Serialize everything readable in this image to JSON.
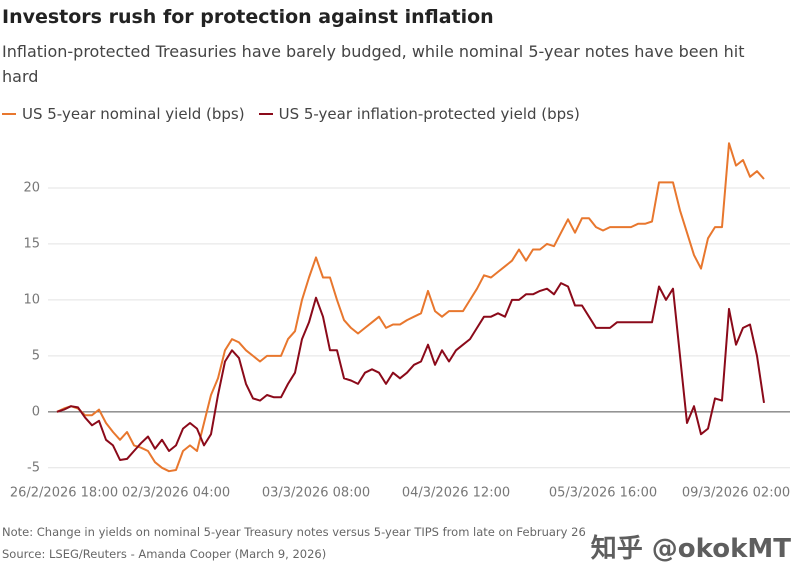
{
  "chart_data": {
    "type": "line",
    "title": "Investors rush for protection against inflation",
    "subtitle": "Inflation-protected Treasuries have barely budged, while nominal 5-year notes have been hit hard",
    "note": "Note: Change in yields on nominal 5-year Treasury notes versus 5-year TIPS from late on February 26",
    "source": "Source: LSEG/Reuters - Amanda Cooper (March 9, 2026)",
    "watermark": "知乎 @okokMT",
    "categories": [
      null,
      "26/2/2026 18:00",
      null,
      null,
      null,
      null,
      null,
      null,
      null,
      null,
      null,
      null,
      null,
      null,
      null,
      null,
      null,
      "02/3/2026 04:00",
      null,
      null,
      null,
      null,
      null,
      null,
      null,
      null,
      null,
      null,
      null,
      null,
      null,
      null,
      null,
      null,
      null,
      null,
      null,
      "03/3/2026 08:00",
      null,
      null,
      null,
      null,
      null,
      null,
      null,
      null,
      null,
      null,
      null,
      null,
      null,
      null,
      null,
      null,
      null,
      null,
      null,
      "04/3/2026 12:00",
      null,
      null,
      null,
      null,
      null,
      null,
      null,
      null,
      null,
      null,
      null,
      null,
      null,
      null,
      null,
      null,
      null,
      null,
      null,
      null,
      "05/3/2026 16:00",
      null,
      null,
      null,
      null,
      null,
      null,
      null,
      null,
      null,
      null,
      null,
      null,
      null,
      null,
      null,
      null,
      null,
      null,
      "09/3/2026 02:00",
      null,
      null,
      null,
      null
    ],
    "series": [
      {
        "name": "US 5-year nominal yield (bps)",
        "color": "#e8772e",
        "values": [
          0,
          0.3,
          0.5,
          0.3,
          -0.3,
          -0.3,
          0.2,
          -1,
          -1.8,
          -2.5,
          -1.8,
          -3,
          -3.2,
          -3.5,
          -4.5,
          -5,
          -5.3,
          -5.2,
          -3.5,
          -3,
          -3.5,
          -1,
          1.5,
          3,
          5.5,
          6.5,
          6.2,
          5.5,
          5,
          4.5,
          5,
          5,
          5,
          6.5,
          7.2,
          10,
          12,
          13.8,
          12,
          12,
          10,
          8.2,
          7.5,
          7,
          7.5,
          8,
          8.5,
          7.5,
          7.8,
          7.8,
          8.2,
          8.5,
          8.8,
          10.8,
          9,
          8.5,
          9,
          9,
          9,
          10,
          11,
          12.2,
          12,
          12.5,
          13,
          13.5,
          14.5,
          13.5,
          14.5,
          14.5,
          15,
          14.8,
          16,
          17.2,
          16,
          17.3,
          17.3,
          16.5,
          16.2,
          16.5,
          16.5,
          16.5,
          16.5,
          16.8,
          16.8,
          17,
          20.5,
          20.5,
          20.5,
          18,
          16,
          14,
          12.8,
          15.5,
          16.5,
          16.5,
          24,
          22,
          22.5,
          21,
          21.5,
          20.8
        ]
      },
      {
        "name": "US 5-year inflation-protected yield (bps)",
        "color": "#8b0a1a",
        "values": [
          0,
          0.2,
          0.5,
          0.4,
          -0.5,
          -1.2,
          -0.8,
          -2.5,
          -3,
          -4.3,
          -4.2,
          -3.5,
          -2.8,
          -2.2,
          -3.3,
          -2.5,
          -3.5,
          -3,
          -1.5,
          -1,
          -1.5,
          -3,
          -2,
          1.5,
          4.5,
          5.5,
          4.8,
          2.5,
          1.2,
          1,
          1.5,
          1.3,
          1.3,
          2.5,
          3.5,
          6.5,
          8,
          10.2,
          8.5,
          5.5,
          5.5,
          3,
          2.8,
          2.5,
          3.5,
          3.8,
          3.5,
          2.5,
          3.5,
          3,
          3.5,
          4.2,
          4.5,
          6,
          4.2,
          5.5,
          4.5,
          5.5,
          6,
          6.5,
          7.5,
          8.5,
          8.5,
          8.8,
          8.5,
          10,
          10,
          10.5,
          10.5,
          10.8,
          11,
          10.5,
          11.5,
          11.2,
          9.5,
          9.5,
          8.5,
          7.5,
          7.5,
          7.5,
          8,
          8,
          8,
          8,
          8,
          8,
          11.2,
          10,
          11,
          5,
          -1,
          0.5,
          -2,
          -1.5,
          1.2,
          1,
          9.2,
          6,
          7.5,
          7.8,
          5,
          0.8
        ]
      }
    ],
    "ylim": [
      -6,
      25
    ],
    "yticks": [
      -5,
      0,
      5,
      10,
      15,
      20
    ],
    "grid": true
  }
}
